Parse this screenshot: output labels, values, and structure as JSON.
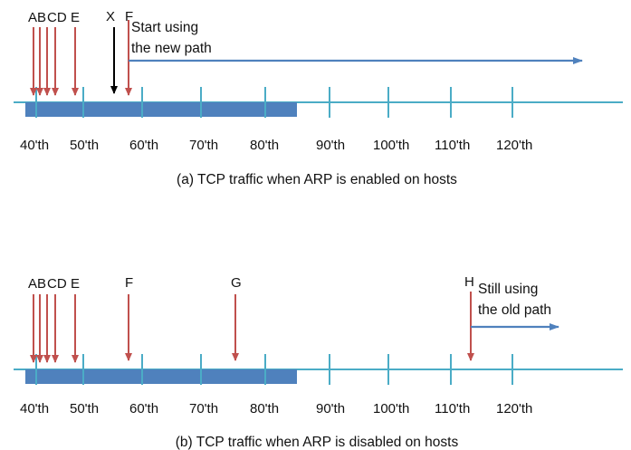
{
  "colors": {
    "axis": "#4bacc6",
    "bar": "#4f81bd",
    "event_arrow": "#c0504d",
    "marker_arrow": "#000000",
    "path_arrow": "#4f81bd"
  },
  "tick_labels": [
    "40'th",
    "50'th",
    "60'th",
    "70'th",
    "80'th",
    "90'th",
    "100'th",
    "110'th",
    "120'th"
  ],
  "panels": [
    {
      "caption": "(a) TCP traffic when ARP is enabled on hosts",
      "progress_span": [
        "40'th",
        "80'th"
      ],
      "labels": [
        {
          "text": "AB",
          "kind": "event"
        },
        {
          "text": "CD",
          "kind": "event"
        },
        {
          "text": "E",
          "kind": "event"
        },
        {
          "text": "X",
          "kind": "marker"
        },
        {
          "text": "F",
          "kind": "event"
        }
      ],
      "note": [
        "Start using",
        "the new path"
      ]
    },
    {
      "caption": "(b) TCP traffic when ARP is disabled on hosts",
      "progress_span": [
        "40'th",
        "80'th"
      ],
      "labels": [
        {
          "text": "AB",
          "kind": "event"
        },
        {
          "text": "CD",
          "kind": "event"
        },
        {
          "text": "E",
          "kind": "event"
        },
        {
          "text": "F",
          "kind": "event"
        },
        {
          "text": "G",
          "kind": "event"
        },
        {
          "text": "H",
          "kind": "event"
        }
      ],
      "note": [
        "Still using",
        "the old path"
      ]
    }
  ]
}
